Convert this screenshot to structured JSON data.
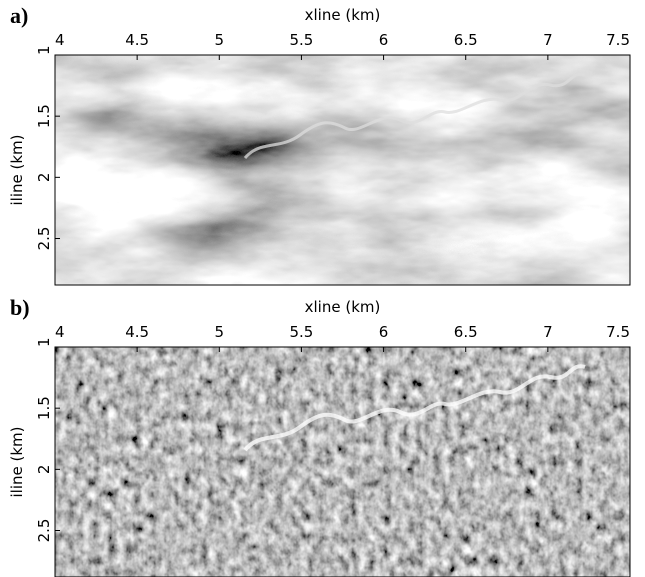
{
  "chart_data": [
    {
      "type": "image",
      "panel_label": "a)",
      "xlabel": "xline (km)",
      "ylabel": "iline (km)",
      "xlim": [
        4,
        7.5
      ],
      "ylim": [
        1,
        2.88
      ],
      "xticks": [
        4,
        4.5,
        5,
        5.5,
        6,
        6.5,
        7,
        7.5
      ],
      "yticks": [
        1,
        1.5,
        2,
        2.5
      ]
    },
    {
      "type": "image",
      "panel_label": "b)",
      "xlabel": "xline (km)",
      "ylabel": "iline (km)",
      "xlim": [
        4,
        7.5
      ],
      "ylim": [
        1,
        2.88
      ],
      "xticks": [
        4,
        4.5,
        5,
        5.5,
        6,
        6.5,
        7,
        7.5
      ],
      "yticks": [
        1,
        1.5,
        2,
        2.5
      ]
    }
  ]
}
